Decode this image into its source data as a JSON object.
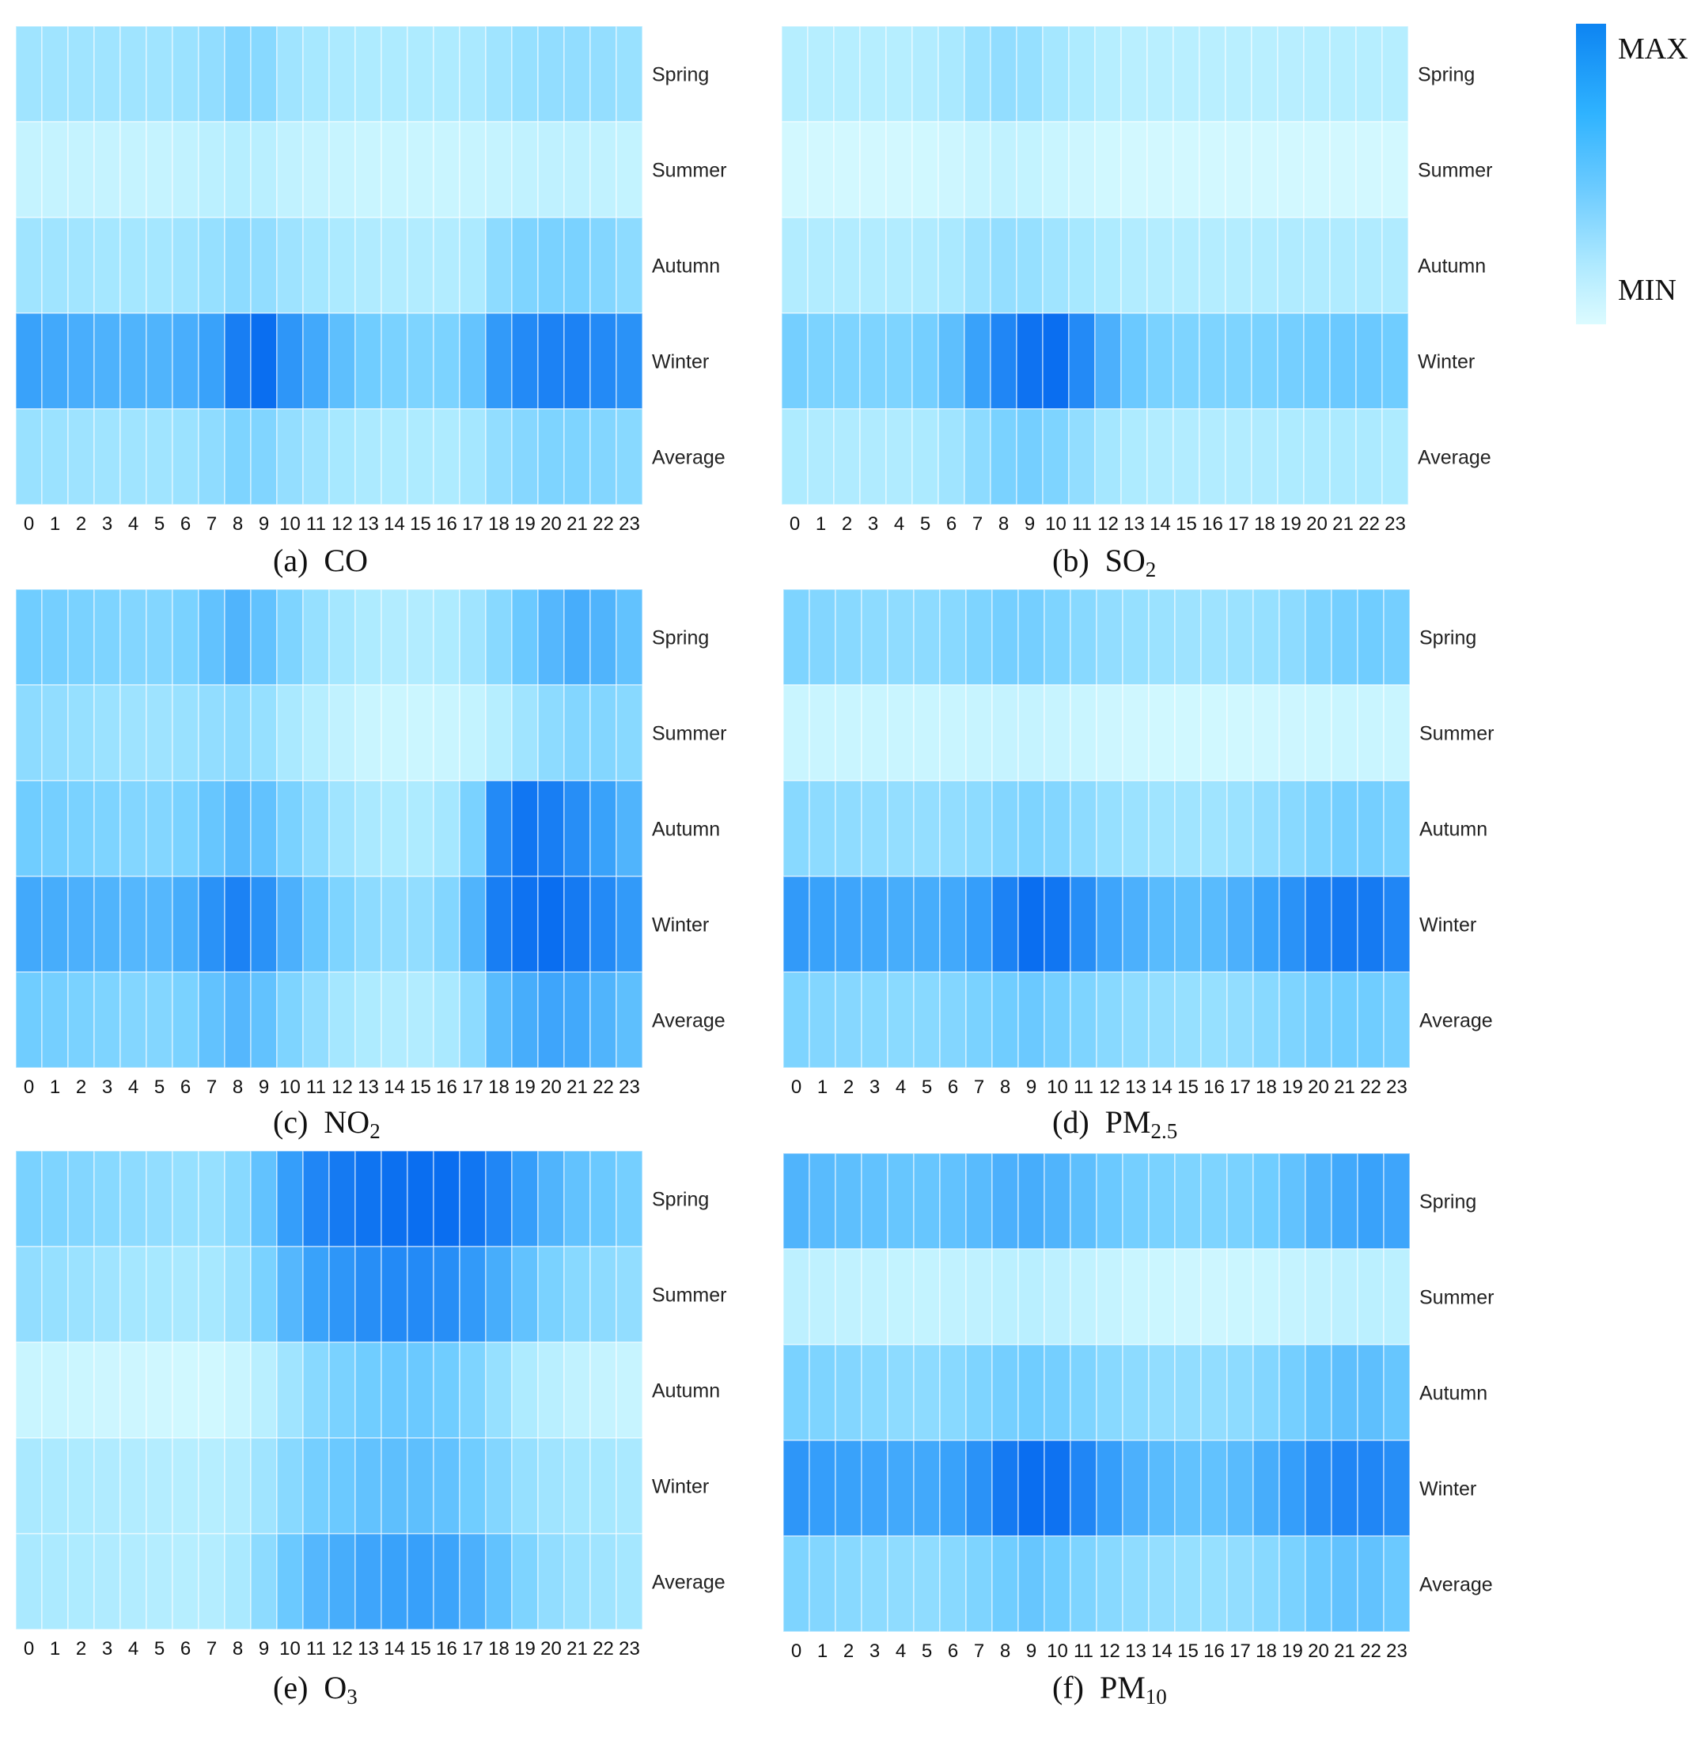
{
  "legend": {
    "max_label": "MAX",
    "min_label": "MIN",
    "color_min": "#dcfcff",
    "color_max": "#0a6ef0"
  },
  "hours": [
    "0",
    "1",
    "2",
    "3",
    "4",
    "5",
    "6",
    "7",
    "8",
    "9",
    "10",
    "11",
    "12",
    "13",
    "14",
    "15",
    "16",
    "17",
    "18",
    "19",
    "20",
    "21",
    "22",
    "23"
  ],
  "rows": [
    "Spring",
    "Summer",
    "Autumn",
    "Winter",
    "Average"
  ],
  "chart_data": [
    {
      "type": "heatmap",
      "title": "CO",
      "caption_prefix": "(a)",
      "title_main": "CO",
      "title_sub": "",
      "x": [
        "0",
        "1",
        "2",
        "3",
        "4",
        "5",
        "6",
        "7",
        "8",
        "9",
        "10",
        "11",
        "12",
        "13",
        "14",
        "15",
        "16",
        "17",
        "18",
        "19",
        "20",
        "21",
        "22",
        "23"
      ],
      "y": [
        "Spring",
        "Summer",
        "Autumn",
        "Winter",
        "Average"
      ],
      "value_range": [
        0,
        1
      ],
      "values": [
        [
          0.3,
          0.3,
          0.3,
          0.3,
          0.3,
          0.3,
          0.32,
          0.36,
          0.42,
          0.4,
          0.3,
          0.27,
          0.25,
          0.24,
          0.24,
          0.24,
          0.24,
          0.26,
          0.3,
          0.34,
          0.36,
          0.36,
          0.35,
          0.33
        ],
        [
          0.12,
          0.12,
          0.12,
          0.12,
          0.12,
          0.12,
          0.14,
          0.17,
          0.2,
          0.18,
          0.14,
          0.12,
          0.11,
          0.1,
          0.1,
          0.1,
          0.1,
          0.11,
          0.12,
          0.14,
          0.15,
          0.15,
          0.14,
          0.13
        ],
        [
          0.3,
          0.3,
          0.29,
          0.28,
          0.28,
          0.28,
          0.3,
          0.34,
          0.38,
          0.36,
          0.31,
          0.28,
          0.25,
          0.23,
          0.22,
          0.22,
          0.22,
          0.25,
          0.38,
          0.44,
          0.46,
          0.46,
          0.42,
          0.38
        ],
        [
          0.74,
          0.7,
          0.67,
          0.65,
          0.64,
          0.64,
          0.67,
          0.74,
          0.92,
          1.0,
          0.8,
          0.7,
          0.58,
          0.5,
          0.46,
          0.44,
          0.45,
          0.55,
          0.78,
          0.86,
          0.9,
          0.9,
          0.86,
          0.82
        ],
        [
          0.33,
          0.32,
          0.31,
          0.3,
          0.3,
          0.3,
          0.32,
          0.37,
          0.44,
          0.43,
          0.35,
          0.31,
          0.27,
          0.25,
          0.24,
          0.24,
          0.24,
          0.28,
          0.36,
          0.41,
          0.44,
          0.44,
          0.42,
          0.4
        ]
      ]
    },
    {
      "type": "heatmap",
      "title": "SO2",
      "caption_prefix": "(b)",
      "title_main": "SO",
      "title_sub": "2",
      "x": [
        "0",
        "1",
        "2",
        "3",
        "4",
        "5",
        "6",
        "7",
        "8",
        "9",
        "10",
        "11",
        "12",
        "13",
        "14",
        "15",
        "16",
        "17",
        "18",
        "19",
        "20",
        "21",
        "22",
        "23"
      ],
      "y": [
        "Spring",
        "Summer",
        "Autumn",
        "Winter",
        "Average"
      ],
      "value_range": [
        0,
        1
      ],
      "values": [
        [
          0.2,
          0.2,
          0.2,
          0.2,
          0.2,
          0.22,
          0.26,
          0.32,
          0.36,
          0.34,
          0.28,
          0.24,
          0.2,
          0.18,
          0.18,
          0.18,
          0.18,
          0.18,
          0.18,
          0.19,
          0.2,
          0.2,
          0.2,
          0.2
        ],
        [
          0.05,
          0.05,
          0.05,
          0.05,
          0.05,
          0.06,
          0.08,
          0.11,
          0.14,
          0.13,
          0.1,
          0.08,
          0.06,
          0.05,
          0.05,
          0.05,
          0.05,
          0.05,
          0.05,
          0.05,
          0.05,
          0.05,
          0.05,
          0.05
        ],
        [
          0.22,
          0.22,
          0.22,
          0.22,
          0.22,
          0.23,
          0.26,
          0.31,
          0.35,
          0.34,
          0.3,
          0.27,
          0.24,
          0.22,
          0.21,
          0.21,
          0.21,
          0.21,
          0.22,
          0.23,
          0.23,
          0.23,
          0.23,
          0.23
        ],
        [
          0.48,
          0.45,
          0.44,
          0.44,
          0.44,
          0.48,
          0.58,
          0.74,
          0.88,
          0.98,
          1.0,
          0.86,
          0.66,
          0.52,
          0.46,
          0.44,
          0.44,
          0.44,
          0.46,
          0.48,
          0.5,
          0.52,
          0.52,
          0.5
        ],
        [
          0.24,
          0.23,
          0.23,
          0.23,
          0.23,
          0.25,
          0.3,
          0.38,
          0.46,
          0.48,
          0.44,
          0.36,
          0.28,
          0.24,
          0.22,
          0.22,
          0.22,
          0.22,
          0.23,
          0.24,
          0.25,
          0.25,
          0.25,
          0.24
        ]
      ]
    },
    {
      "type": "heatmap",
      "title": "NO2",
      "caption_prefix": "(c)",
      "title_main": "NO",
      "title_sub": "2",
      "x": [
        "0",
        "1",
        "2",
        "3",
        "4",
        "5",
        "6",
        "7",
        "8",
        "9",
        "10",
        "11",
        "12",
        "13",
        "14",
        "15",
        "16",
        "17",
        "18",
        "19",
        "20",
        "21",
        "22",
        "23"
      ],
      "y": [
        "Spring",
        "Summer",
        "Autumn",
        "Winter",
        "Average"
      ],
      "value_range": [
        0,
        1
      ],
      "values": [
        [
          0.5,
          0.48,
          0.46,
          0.44,
          0.42,
          0.42,
          0.46,
          0.56,
          0.64,
          0.56,
          0.44,
          0.34,
          0.28,
          0.24,
          0.22,
          0.22,
          0.24,
          0.3,
          0.4,
          0.52,
          0.62,
          0.68,
          0.64,
          0.56
        ],
        [
          0.38,
          0.36,
          0.34,
          0.32,
          0.31,
          0.31,
          0.33,
          0.36,
          0.38,
          0.34,
          0.26,
          0.2,
          0.14,
          0.1,
          0.09,
          0.09,
          0.1,
          0.13,
          0.2,
          0.3,
          0.38,
          0.42,
          0.42,
          0.4
        ],
        [
          0.5,
          0.48,
          0.46,
          0.44,
          0.42,
          0.42,
          0.46,
          0.54,
          0.6,
          0.56,
          0.46,
          0.38,
          0.3,
          0.26,
          0.24,
          0.24,
          0.28,
          0.46,
          0.86,
          0.96,
          0.92,
          0.84,
          0.74,
          0.64
        ],
        [
          0.7,
          0.68,
          0.66,
          0.64,
          0.62,
          0.62,
          0.68,
          0.82,
          0.9,
          0.82,
          0.66,
          0.54,
          0.44,
          0.38,
          0.36,
          0.36,
          0.42,
          0.64,
          0.92,
          0.98,
          1.0,
          0.94,
          0.86,
          0.78
        ],
        [
          0.5,
          0.48,
          0.46,
          0.44,
          0.42,
          0.42,
          0.46,
          0.56,
          0.62,
          0.56,
          0.44,
          0.36,
          0.28,
          0.24,
          0.22,
          0.22,
          0.26,
          0.38,
          0.6,
          0.68,
          0.72,
          0.7,
          0.64,
          0.58
        ]
      ]
    },
    {
      "type": "heatmap",
      "title": "PM2.5",
      "caption_prefix": "(d)",
      "title_main": "PM",
      "title_sub": "2.5",
      "x": [
        "0",
        "1",
        "2",
        "3",
        "4",
        "5",
        "6",
        "7",
        "8",
        "9",
        "10",
        "11",
        "12",
        "13",
        "14",
        "15",
        "16",
        "17",
        "18",
        "19",
        "20",
        "21",
        "22",
        "23"
      ],
      "y": [
        "Spring",
        "Summer",
        "Autumn",
        "Winter",
        "Average"
      ],
      "value_range": [
        0,
        1
      ],
      "values": [
        [
          0.44,
          0.42,
          0.4,
          0.38,
          0.37,
          0.38,
          0.4,
          0.44,
          0.48,
          0.48,
          0.44,
          0.4,
          0.36,
          0.34,
          0.32,
          0.31,
          0.31,
          0.32,
          0.34,
          0.38,
          0.44,
          0.48,
          0.5,
          0.48
        ],
        [
          0.1,
          0.1,
          0.1,
          0.1,
          0.1,
          0.1,
          0.1,
          0.11,
          0.12,
          0.12,
          0.11,
          0.1,
          0.08,
          0.07,
          0.06,
          0.06,
          0.06,
          0.06,
          0.07,
          0.08,
          0.09,
          0.1,
          0.1,
          0.1
        ],
        [
          0.4,
          0.38,
          0.37,
          0.36,
          0.35,
          0.35,
          0.36,
          0.38,
          0.42,
          0.44,
          0.42,
          0.38,
          0.34,
          0.32,
          0.3,
          0.3,
          0.3,
          0.32,
          0.36,
          0.4,
          0.44,
          0.48,
          0.48,
          0.46
        ],
        [
          0.78,
          0.74,
          0.72,
          0.7,
          0.68,
          0.68,
          0.7,
          0.76,
          0.9,
          1.0,
          0.96,
          0.84,
          0.72,
          0.66,
          0.6,
          0.58,
          0.6,
          0.66,
          0.74,
          0.82,
          0.9,
          0.94,
          0.94,
          0.88
        ],
        [
          0.44,
          0.42,
          0.41,
          0.4,
          0.39,
          0.4,
          0.42,
          0.46,
          0.5,
          0.52,
          0.48,
          0.44,
          0.4,
          0.37,
          0.35,
          0.34,
          0.34,
          0.36,
          0.4,
          0.44,
          0.48,
          0.5,
          0.5,
          0.48
        ]
      ]
    },
    {
      "type": "heatmap",
      "title": "O3",
      "caption_prefix": "(e)",
      "title_main": "O",
      "title_sub": "3",
      "x": [
        "0",
        "1",
        "2",
        "3",
        "4",
        "5",
        "6",
        "7",
        "8",
        "9",
        "10",
        "11",
        "12",
        "13",
        "14",
        "15",
        "16",
        "17",
        "18",
        "19",
        "20",
        "21",
        "22",
        "23"
      ],
      "y": [
        "Spring",
        "Summer",
        "Autumn",
        "Winter",
        "Average"
      ],
      "value_range": [
        0,
        1
      ],
      "values": [
        [
          0.46,
          0.44,
          0.42,
          0.4,
          0.38,
          0.36,
          0.34,
          0.34,
          0.4,
          0.56,
          0.76,
          0.88,
          0.94,
          0.97,
          0.99,
          1.0,
          1.0,
          0.96,
          0.88,
          0.76,
          0.64,
          0.56,
          0.52,
          0.48
        ],
        [
          0.36,
          0.34,
          0.32,
          0.3,
          0.28,
          0.27,
          0.26,
          0.27,
          0.32,
          0.46,
          0.62,
          0.74,
          0.8,
          0.84,
          0.86,
          0.86,
          0.84,
          0.78,
          0.68,
          0.56,
          0.46,
          0.4,
          0.38,
          0.36
        ],
        [
          0.1,
          0.1,
          0.09,
          0.08,
          0.08,
          0.07,
          0.06,
          0.06,
          0.1,
          0.18,
          0.3,
          0.4,
          0.46,
          0.5,
          0.52,
          0.52,
          0.5,
          0.44,
          0.34,
          0.24,
          0.18,
          0.14,
          0.12,
          0.11
        ],
        [
          0.26,
          0.25,
          0.24,
          0.23,
          0.22,
          0.21,
          0.2,
          0.2,
          0.22,
          0.3,
          0.4,
          0.48,
          0.52,
          0.56,
          0.58,
          0.58,
          0.56,
          0.5,
          0.42,
          0.34,
          0.3,
          0.28,
          0.27,
          0.26
        ],
        [
          0.26,
          0.25,
          0.24,
          0.23,
          0.22,
          0.21,
          0.2,
          0.21,
          0.26,
          0.38,
          0.52,
          0.62,
          0.68,
          0.72,
          0.74,
          0.75,
          0.73,
          0.66,
          0.56,
          0.44,
          0.36,
          0.32,
          0.3,
          0.28
        ]
      ]
    },
    {
      "type": "heatmap",
      "title": "PM10",
      "caption_prefix": "(f)",
      "title_main": "PM",
      "title_sub": "10",
      "x": [
        "0",
        "1",
        "2",
        "3",
        "4",
        "5",
        "6",
        "7",
        "8",
        "9",
        "10",
        "11",
        "12",
        "13",
        "14",
        "15",
        "16",
        "17",
        "18",
        "19",
        "20",
        "21",
        "22",
        "23"
      ],
      "y": [
        "Spring",
        "Summer",
        "Autumn",
        "Winter",
        "Average"
      ],
      "value_range": [
        0,
        1
      ],
      "values": [
        [
          0.64,
          0.6,
          0.58,
          0.56,
          0.54,
          0.54,
          0.56,
          0.6,
          0.66,
          0.68,
          0.64,
          0.58,
          0.52,
          0.48,
          0.46,
          0.44,
          0.44,
          0.46,
          0.5,
          0.56,
          0.64,
          0.7,
          0.74,
          0.72
        ],
        [
          0.16,
          0.15,
          0.14,
          0.14,
          0.13,
          0.13,
          0.14,
          0.15,
          0.17,
          0.18,
          0.16,
          0.14,
          0.12,
          0.1,
          0.09,
          0.08,
          0.08,
          0.09,
          0.1,
          0.12,
          0.14,
          0.16,
          0.17,
          0.17
        ],
        [
          0.46,
          0.44,
          0.42,
          0.4,
          0.38,
          0.38,
          0.4,
          0.44,
          0.48,
          0.5,
          0.48,
          0.44,
          0.4,
          0.38,
          0.36,
          0.36,
          0.36,
          0.38,
          0.42,
          0.48,
          0.54,
          0.58,
          0.58,
          0.54
        ],
        [
          0.8,
          0.76,
          0.74,
          0.72,
          0.7,
          0.7,
          0.74,
          0.82,
          0.94,
          1.0,
          0.98,
          0.88,
          0.76,
          0.66,
          0.6,
          0.56,
          0.56,
          0.6,
          0.68,
          0.76,
          0.84,
          0.88,
          0.88,
          0.84
        ],
        [
          0.44,
          0.42,
          0.4,
          0.38,
          0.37,
          0.37,
          0.4,
          0.44,
          0.5,
          0.54,
          0.5,
          0.44,
          0.4,
          0.37,
          0.35,
          0.34,
          0.34,
          0.36,
          0.4,
          0.46,
          0.52,
          0.56,
          0.56,
          0.52
        ]
      ]
    }
  ]
}
